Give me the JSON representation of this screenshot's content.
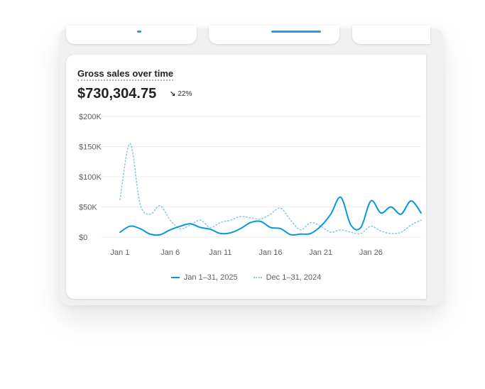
{
  "card": {
    "title": "Gross sales over time",
    "total": "$730,304.75",
    "change": "22%",
    "change_icon": "arrow-down-right-icon"
  },
  "colors": {
    "current": "#0a97d9",
    "previous": "#8ecae8",
    "grid": "#ebebeb",
    "axis_text": "#616161"
  },
  "chart_data": {
    "type": "line",
    "title": "Gross sales over time",
    "xlabel": "",
    "ylabel": "",
    "y_ticks": [
      "$0",
      "$50K",
      "$100K",
      "$150K",
      "$200K"
    ],
    "ylim": [
      0,
      200000
    ],
    "x_ticks": [
      "Jan 1",
      "Jan 6",
      "Jan 11",
      "Jan 16",
      "Jan 21",
      "Jan 26"
    ],
    "x": [
      1,
      2,
      3,
      4,
      5,
      6,
      7,
      8,
      9,
      10,
      11,
      12,
      13,
      14,
      15,
      16,
      17,
      18,
      19,
      20,
      21,
      22,
      23,
      24,
      25,
      26,
      27,
      28,
      29,
      30,
      31
    ],
    "grid": true,
    "legend_position": "bottom",
    "series": [
      {
        "name": "Jan 1–31, 2025",
        "style": "solid",
        "values": [
          8000,
          18000,
          14000,
          5000,
          4000,
          12000,
          18000,
          22000,
          16000,
          13000,
          6000,
          7000,
          14000,
          24000,
          26000,
          16000,
          14000,
          4000,
          5000,
          6000,
          18000,
          38000,
          66000,
          20000,
          16000,
          60000,
          40000,
          50000,
          38000,
          60000,
          40000
        ]
      },
      {
        "name": "Dec 1–31, 2024",
        "style": "dotted",
        "values": [
          62000,
          155000,
          55000,
          38000,
          52000,
          28000,
          14000,
          20000,
          28000,
          16000,
          24000,
          28000,
          34000,
          32000,
          30000,
          38000,
          48000,
          28000,
          12000,
          24000,
          18000,
          8000,
          12000,
          8000,
          6000,
          18000,
          10000,
          6000,
          8000,
          20000,
          28000
        ]
      }
    ]
  }
}
